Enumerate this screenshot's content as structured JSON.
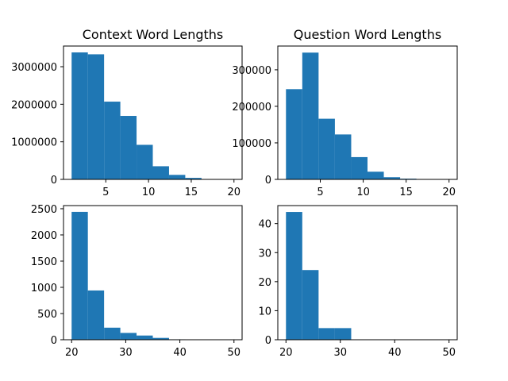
{
  "chart_data": [
    {
      "type": "bar",
      "title": "Context Word Lengths",
      "xlabel": "",
      "ylabel": "",
      "bins": [
        [
          1.0,
          2.9,
          3380000
        ],
        [
          2.9,
          4.8,
          3330000
        ],
        [
          4.8,
          6.7,
          2070000
        ],
        [
          6.7,
          8.6,
          1690000
        ],
        [
          8.6,
          10.5,
          920000
        ],
        [
          10.5,
          12.4,
          350000
        ],
        [
          12.4,
          14.3,
          120000
        ],
        [
          14.3,
          16.2,
          40000
        ],
        [
          16.2,
          18.1,
          10000
        ],
        [
          18.1,
          20.0,
          5000
        ]
      ],
      "xlim": [
        0.05,
        20.95
      ],
      "ylim": [
        0,
        3550000
      ],
      "xticks": [
        5,
        10,
        15,
        20
      ],
      "xtick_labels": [
        "5",
        "10",
        "15",
        "20"
      ],
      "yticks": [
        0,
        1000000,
        2000000,
        3000000
      ],
      "ytick_labels": [
        "0",
        "1000000",
        "2000000",
        "3000000"
      ],
      "color": "#1f77b4"
    },
    {
      "type": "bar",
      "title": "Question Word Lengths",
      "xlabel": "",
      "ylabel": "",
      "bins": [
        [
          1.0,
          2.9,
          247000
        ],
        [
          2.9,
          4.8,
          347000
        ],
        [
          4.8,
          6.7,
          166000
        ],
        [
          6.7,
          8.6,
          123000
        ],
        [
          8.6,
          10.5,
          61000
        ],
        [
          10.5,
          12.4,
          21000
        ],
        [
          12.4,
          14.3,
          6000
        ],
        [
          14.3,
          16.2,
          2000
        ],
        [
          16.2,
          18.1,
          600
        ],
        [
          18.1,
          20.0,
          100
        ]
      ],
      "xlim": [
        0.05,
        20.95
      ],
      "ylim": [
        0,
        365000
      ],
      "xticks": [
        5,
        10,
        15,
        20
      ],
      "xtick_labels": [
        "5",
        "10",
        "15",
        "20"
      ],
      "yticks": [
        0,
        100000,
        200000,
        300000
      ],
      "ytick_labels": [
        "0",
        "100000",
        "200000",
        "300000"
      ],
      "color": "#1f77b4"
    },
    {
      "type": "bar",
      "title": "",
      "xlabel": "",
      "ylabel": "",
      "bins": [
        [
          20,
          23,
          2440
        ],
        [
          23,
          26,
          940
        ],
        [
          26,
          29,
          230
        ],
        [
          29,
          32,
          130
        ],
        [
          32,
          35,
          80
        ],
        [
          35,
          38,
          35
        ],
        [
          38,
          41,
          8
        ],
        [
          41,
          44,
          4
        ],
        [
          44,
          47,
          2
        ],
        [
          47,
          50,
          1
        ]
      ],
      "xlim": [
        18.5,
        51.5
      ],
      "ylim": [
        0,
        2560
      ],
      "xticks": [
        20,
        30,
        40,
        50
      ],
      "xtick_labels": [
        "20",
        "30",
        "40",
        "50"
      ],
      "yticks": [
        0,
        500,
        1000,
        1500,
        2000,
        2500
      ],
      "ytick_labels": [
        "0",
        "500",
        "1000",
        "1500",
        "2000",
        "2500"
      ],
      "color": "#1f77b4"
    },
    {
      "type": "bar",
      "title": "",
      "xlabel": "",
      "ylabel": "",
      "bins": [
        [
          20,
          23,
          44
        ],
        [
          23,
          26,
          24
        ],
        [
          26,
          29,
          4
        ],
        [
          29,
          32,
          4
        ],
        [
          32,
          35,
          0
        ],
        [
          35,
          38,
          0
        ],
        [
          38,
          41,
          0
        ],
        [
          41,
          44,
          0
        ],
        [
          44,
          47,
          0
        ],
        [
          47,
          50,
          0
        ]
      ],
      "xlim": [
        18.5,
        51.5
      ],
      "ylim": [
        0,
        46.2
      ],
      "xticks": [
        20,
        30,
        40,
        50
      ],
      "xtick_labels": [
        "20",
        "30",
        "40",
        "50"
      ],
      "yticks": [
        0,
        10,
        20,
        30,
        40
      ],
      "ytick_labels": [
        "0",
        "10",
        "20",
        "30",
        "40"
      ],
      "color": "#1f77b4"
    }
  ]
}
